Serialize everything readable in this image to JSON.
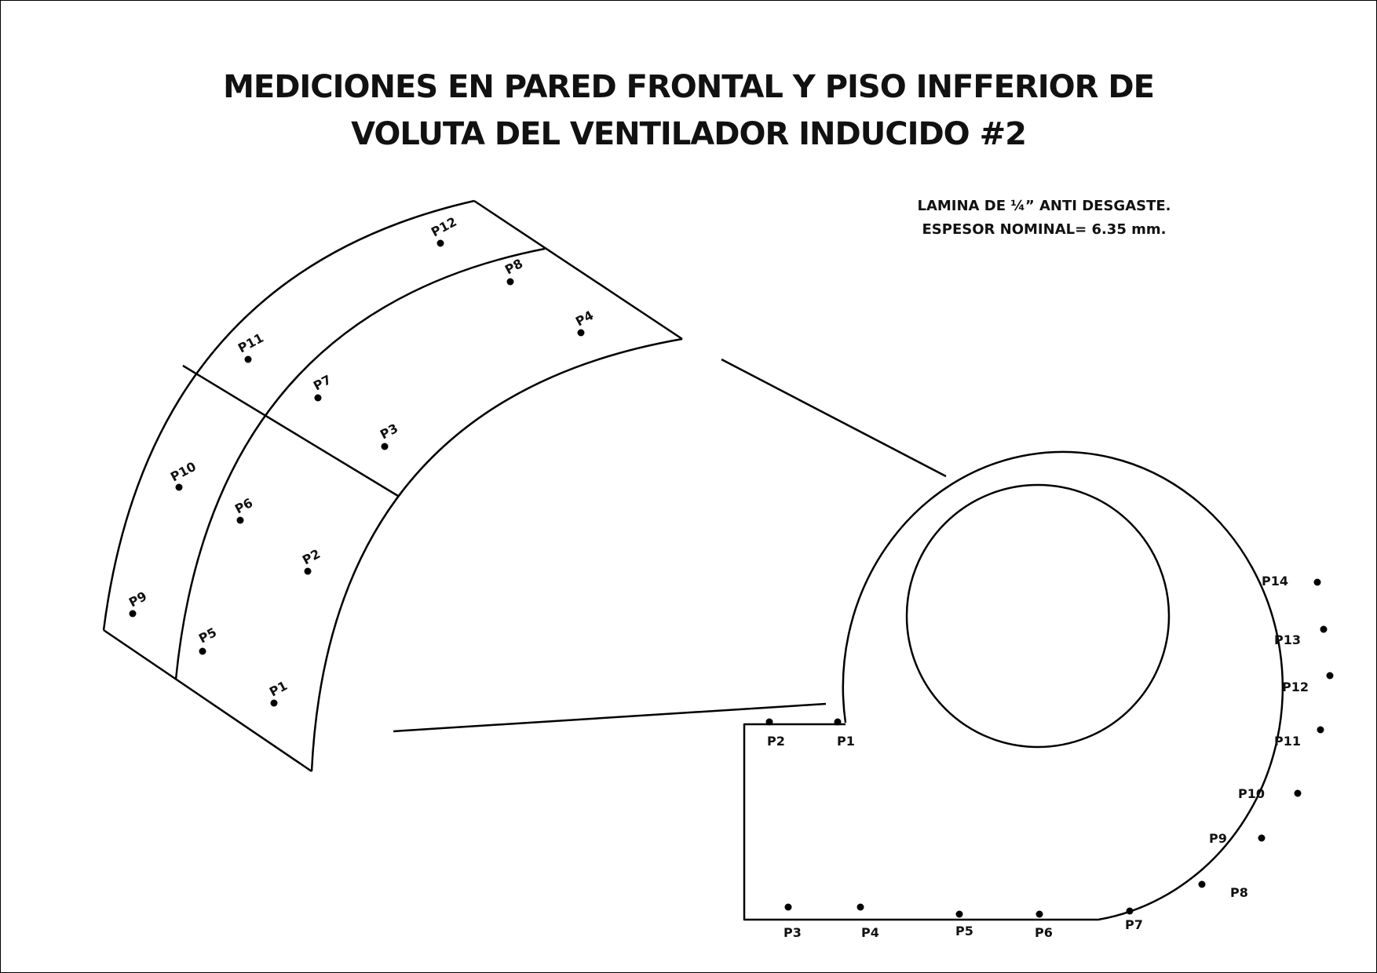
{
  "title": {
    "line1": "MEDICIONES EN PARED FRONTAL Y PISO INFFERIOR DE",
    "line2": "VOLUTA DEL VENTILADOR INDUCIDO #2"
  },
  "notes": {
    "line1": "LAMINA DE ¼” ANTI DESGASTE.",
    "line2": "ESPESOR NOMINAL= 6.35 mm."
  },
  "front_wall_points": [
    {
      "label": "P1"
    },
    {
      "label": "P2"
    },
    {
      "label": "P3"
    },
    {
      "label": "P4"
    },
    {
      "label": "P5"
    },
    {
      "label": "P6"
    },
    {
      "label": "P7"
    },
    {
      "label": "P8"
    },
    {
      "label": "P9"
    },
    {
      "label": "P10"
    },
    {
      "label": "P11"
    },
    {
      "label": "P12"
    }
  ],
  "floor_points": [
    {
      "label": "P1"
    },
    {
      "label": "P2"
    },
    {
      "label": "P3"
    },
    {
      "label": "P4"
    },
    {
      "label": "P5"
    },
    {
      "label": "P6"
    },
    {
      "label": "P7"
    },
    {
      "label": "P8"
    },
    {
      "label": "P9"
    },
    {
      "label": "P10"
    },
    {
      "label": "P11"
    },
    {
      "label": "P12"
    },
    {
      "label": "P13"
    },
    {
      "label": "P14"
    }
  ]
}
